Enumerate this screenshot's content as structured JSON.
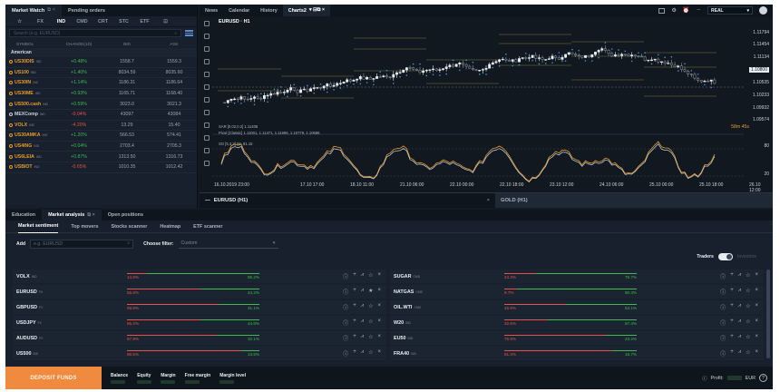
{
  "market_watch": {
    "tabs": [
      "Market Watch",
      "Pending orders"
    ],
    "categories": [
      "☆",
      "FX",
      "IND",
      "CMD",
      "CRT",
      "STC",
      "ETF",
      "⊡"
    ],
    "active_category": "IND",
    "search_placeholder": "Search (e.g. EURUSD)",
    "columns": [
      "SYMBOL",
      "CHANGE(1D)",
      "BID",
      "ASK"
    ],
    "group": "American",
    "rows": [
      {
        "symbol": "US30DIS",
        "tag": "IND",
        "change": "+0.48%",
        "bid": "1558.7",
        "ask": "1559.3",
        "dir": "pos",
        "color": "orange"
      },
      {
        "symbol": "US100",
        "tag": "IND",
        "change": "+1.40%",
        "bid": "8034.59",
        "ask": "8035.60",
        "dir": "pos",
        "color": "orange"
      },
      {
        "symbol": "US30IN",
        "tag": "IND",
        "change": "+1.14%",
        "bid": "1186.31",
        "ask": "1186.64",
        "dir": "pos",
        "color": "orange"
      },
      {
        "symbol": "US30ME",
        "tag": "IND",
        "change": "+0.93%",
        "bid": "1165.71",
        "ask": "1168.40",
        "dir": "pos",
        "color": "orange"
      },
      {
        "symbol": "US500.cash",
        "tag": "IND",
        "change": "+0.59%",
        "bid": "3023.0",
        "ask": "3021.3",
        "dir": "pos",
        "color": "orange"
      },
      {
        "symbol": "MEXComp",
        "tag": "IND",
        "change": "-0.04%",
        "bid": "43097",
        "ask": "43084",
        "dir": "neg",
        "color": "white"
      },
      {
        "symbol": "VOLX",
        "tag": "IND",
        "change": "-4.20%",
        "bid": "13.29",
        "ask": "15.40",
        "dir": "neg",
        "color": "orange"
      },
      {
        "symbol": "US30AMKA",
        "tag": "IND",
        "change": "+1.20%",
        "bid": "566.53",
        "ask": "574.41",
        "dir": "pos",
        "color": "orange"
      },
      {
        "symbol": "US4ING",
        "tag": "IND",
        "change": "+0.04%",
        "bid": "2703.4",
        "ask": "2705.3",
        "dir": "pos",
        "color": "orange"
      },
      {
        "symbol": "US6LEIA",
        "tag": "IND",
        "change": "+0.87%",
        "bid": "1313.50",
        "ask": "1316.73",
        "dir": "pos",
        "color": "orange"
      },
      {
        "symbol": "USBIOT",
        "tag": "IND",
        "change": "-0.65%",
        "bid": "1010.35",
        "ask": "1012.42",
        "dir": "neg",
        "color": "orange"
      }
    ]
  },
  "chart_panel": {
    "tabs": [
      "News",
      "Calendar",
      "History",
      "Charts2"
    ],
    "active_tab": "Charts2",
    "account_mode": "REAL",
    "symbol": "EURUSD",
    "timeframe": "H1",
    "indicator_labels": [
      "SAR [0.02,0.2] 1.11408",
      "Pivot [Classic] 1.11001, 1.11471, 1.11696, 1.10779, 1.10586",
      "SO [5,3,3] 86, 81.15"
    ],
    "price_ticks": [
      "1.11794",
      "1.11454",
      "1.11134",
      "1.10800",
      "1.10535",
      "1.10233",
      "1.09932",
      "1.09574"
    ],
    "current_price": "1.10800",
    "countdown": "58m 45s",
    "osc_ticks": [
      "80",
      "20"
    ],
    "time_ticks": [
      "16.10.2019 23:00",
      "17.10 17:00",
      "18.10 11:00",
      "21.10 06:00",
      "22.10 00:00",
      "22.10 18:00",
      "23.10 12:00",
      "24.10 06:00",
      "25.10 00:00",
      "25.10 18:00",
      "26.10 12:00"
    ],
    "bottom_tabs": [
      "EURUSD (H1)",
      "GOLD (H1)"
    ],
    "colors": {
      "up": "#e6edf3",
      "down": "#8b96a3",
      "sar": "#4a90e2",
      "pivot": "#9aa84a",
      "stoch_k": "#e69b2e",
      "stoch_d": "#d0d7de"
    }
  },
  "bottom_panel": {
    "tabs": [
      "Education",
      "Market analysis",
      "Open positions"
    ],
    "active_tab": "Market analysis",
    "subtabs": [
      "Market sentiment",
      "Top movers",
      "Stocks scanner",
      "Heatmap",
      "ETF scanner"
    ],
    "active_subtab": "Market sentiment",
    "add_label": "Add",
    "add_placeholder": "e.g. EURUSD",
    "filter_label": "Choose filter:",
    "filter_value": "Custom",
    "traders_label": "Traders",
    "investors_label": "Investors",
    "sentiment": [
      {
        "symbol": "VOLX",
        "tag": "IND",
        "sell": "14.8%",
        "buy": "85.2%",
        "sell_frac": 0.148
      },
      {
        "symbol": "SUGAR",
        "tag": "CMD",
        "sell": "24.3%",
        "buy": "75.7%",
        "sell_frac": 0.243
      },
      {
        "symbol": "EURUSD",
        "tag": "FX",
        "sell": "55.8%",
        "buy": "44.2%",
        "sell_frac": 0.558
      },
      {
        "symbol": "NATGAS",
        "tag": "CMD",
        "sell": "9.7%",
        "buy": "90.3%",
        "sell_frac": 0.097
      },
      {
        "symbol": "GBPUSD",
        "tag": "FX",
        "sell": "68.9%",
        "buy": "31.1%",
        "sell_frac": 0.689
      },
      {
        "symbol": "OIL.WTI",
        "tag": "CMD",
        "sell": "46.9%",
        "buy": "53.1%",
        "sell_frac": 0.469
      },
      {
        "symbol": "USDJPY",
        "tag": "FX",
        "sell": "55.2%",
        "buy": "44.8%",
        "sell_frac": 0.552
      },
      {
        "symbol": "W20",
        "tag": "IND",
        "sell": "32.6%",
        "buy": "67.4%",
        "sell_frac": 0.326
      },
      {
        "symbol": "AUDUSD",
        "tag": "FX",
        "sell": "67.9%",
        "buy": "32.1%",
        "sell_frac": 0.679
      },
      {
        "symbol": "EU50",
        "tag": "IND",
        "sell": "76.8%",
        "buy": "23.2%",
        "sell_frac": 0.768
      },
      {
        "symbol": "US500",
        "tag": "IND",
        "sell": "86.5%",
        "buy": "13.5%",
        "sell_frac": 0.865
      },
      {
        "symbol": "FRA40",
        "tag": "IND",
        "sell": "81.3%",
        "buy": "18.7%",
        "sell_frac": 0.813
      }
    ]
  },
  "footer": {
    "deposit_label": "DEPOSIT FUNDS",
    "stats": [
      "Balance",
      "Equity",
      "Margin",
      "Free margin",
      "Margin level"
    ],
    "profit_label": "Profit:",
    "currency": "EUR"
  }
}
